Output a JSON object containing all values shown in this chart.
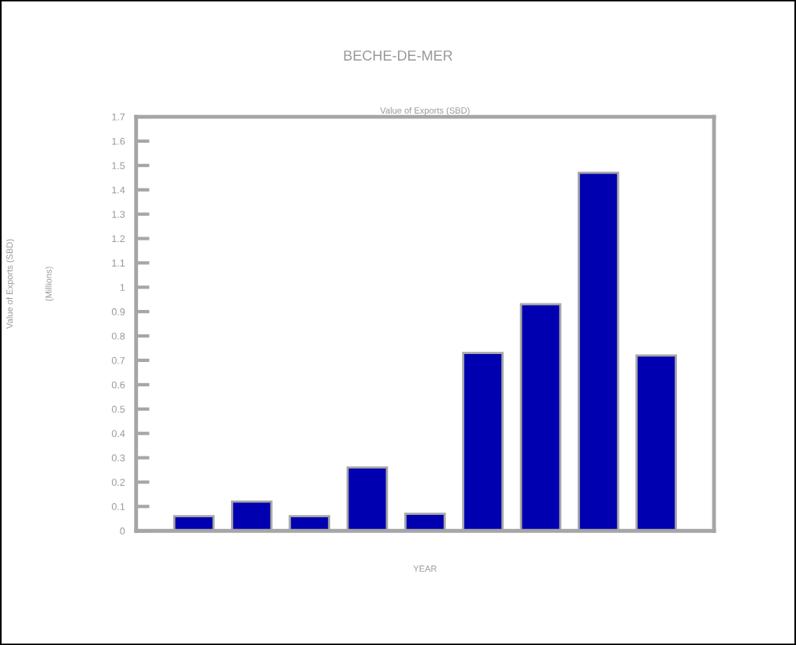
{
  "chart_data": {
    "type": "bar",
    "title": "BECHE-DE-MER",
    "subtitle": "Value of Exports (SBD)",
    "xlabel": "YEAR",
    "annotations": [
      "Value of Exports (SBD)",
      "(Millions)"
    ],
    "categories": [
      null,
      null,
      null,
      null,
      null,
      null,
      null,
      null,
      null
    ],
    "values": [
      0.06,
      0.12,
      0.06,
      0.26,
      0.07,
      0.73,
      0.93,
      1.47,
      0.72
    ],
    "color": "#0000b0",
    "ylim": [
      0,
      1.7
    ],
    "yticks": [
      0,
      0.1,
      0.2,
      0.3,
      0.4,
      0.5,
      0.6,
      0.7,
      0.8,
      0.9,
      1,
      1.1,
      1.2,
      1.3,
      1.4,
      1.5,
      1.6,
      1.7
    ],
    "grid": false,
    "legend": false
  }
}
